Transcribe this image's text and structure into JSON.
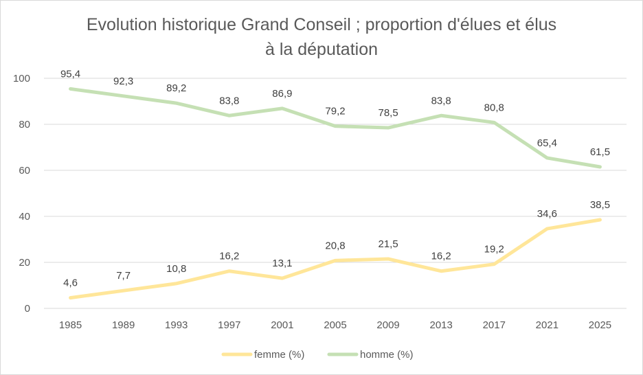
{
  "chart_data": {
    "type": "line",
    "title_line1": "Evolution historique Grand Conseil ; proportion d'élues et élus",
    "title_line2": "à la députation",
    "categories": [
      "1985",
      "1989",
      "1993",
      "1997",
      "2001",
      "2005",
      "2009",
      "2013",
      "2017",
      "2021",
      "2025"
    ],
    "ylim": [
      0,
      100
    ],
    "yticks": [
      0,
      20,
      40,
      60,
      80,
      100
    ],
    "grid": true,
    "legend_position": "bottom",
    "series": [
      {
        "name": "femme (%)",
        "color": "#ffe699",
        "values": [
          4.6,
          7.7,
          10.8,
          16.2,
          13.1,
          20.8,
          21.5,
          16.2,
          19.2,
          34.6,
          38.5
        ],
        "labels": [
          "4,6",
          "7,7",
          "10,8",
          "16,2",
          "13,1",
          "20,8",
          "21,5",
          "16,2",
          "19,2",
          "34,6",
          "38,5"
        ]
      },
      {
        "name": "homme (%)",
        "color": "#c5e0b4",
        "values": [
          95.4,
          92.3,
          89.2,
          83.8,
          86.9,
          79.2,
          78.5,
          83.8,
          80.8,
          65.4,
          61.5
        ],
        "labels": [
          "95,4",
          "92,3",
          "89,2",
          "83,8",
          "86,9",
          "79,2",
          "78,5",
          "83,8",
          "80,8",
          "65,4",
          "61,5"
        ]
      }
    ]
  }
}
